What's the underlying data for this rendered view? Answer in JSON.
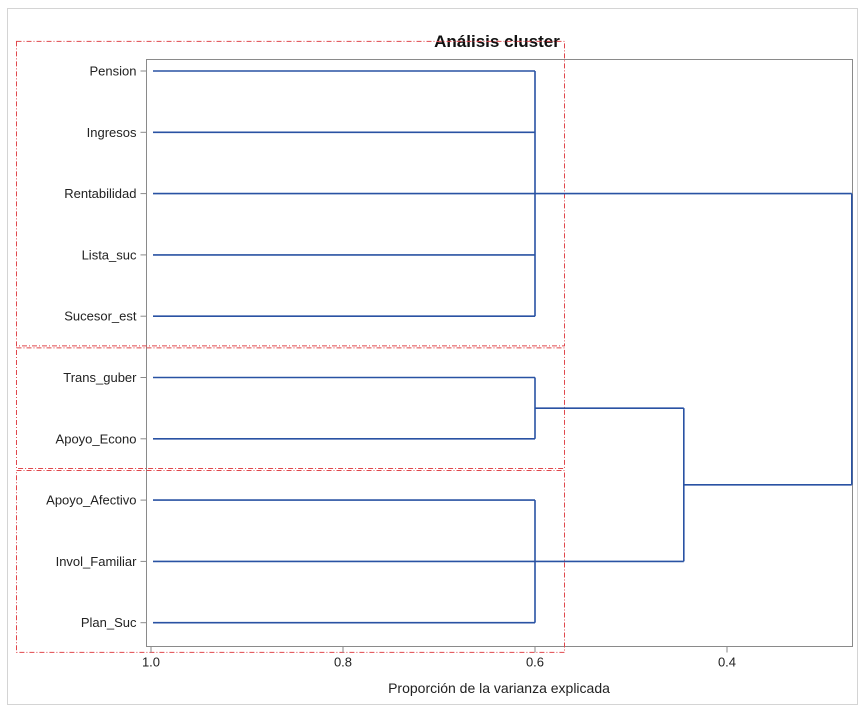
{
  "chart_data": {
    "type": "dendrogram",
    "title": "Análisis cluster",
    "xlabel": "Proporción de la varianza explicada",
    "xlim": [
      1.0,
      0.263
    ],
    "x_ticks": [
      "1.0",
      "0.8",
      "0.6",
      "0.4"
    ],
    "x_tick_values": [
      1.0,
      0.8,
      0.6,
      0.4
    ],
    "leaves": [
      "Pension",
      "Ingresos",
      "Rentabilidad",
      "Lista_suc",
      "Sucesor_est",
      "Trans_guber",
      "Apoyo_Econo",
      "Apoyo_Afectivo",
      "Invol_Familiar",
      "Plan_Suc"
    ],
    "merges": [
      {
        "members": [
          "Pension",
          "Ingresos",
          "Rentabilidad",
          "Lista_suc",
          "Sucesor_est"
        ],
        "height": 0.6
      },
      {
        "members": [
          "Trans_guber",
          "Apoyo_Econo"
        ],
        "height": 0.6
      },
      {
        "members": [
          "Apoyo_Afectivo",
          "Invol_Familiar",
          "Plan_Suc"
        ],
        "height": 0.6
      },
      {
        "members": [
          "cluster_2",
          "cluster_3"
        ],
        "height": 0.445
      },
      {
        "members": [
          "cluster_1",
          "cluster_4"
        ],
        "height": 0.27
      }
    ],
    "highlight_groups": [
      [
        "Pension",
        "Ingresos",
        "Rentabilidad",
        "Lista_suc",
        "Sucesor_est"
      ],
      [
        "Trans_guber",
        "Apoyo_Econo"
      ],
      [
        "Apoyo_Afectivo",
        "Invol_Familiar",
        "Plan_Suc"
      ]
    ],
    "grid": false,
    "legend": "none",
    "colors": {
      "branch": "#2952a3",
      "highlight_box": "#e0474c",
      "axis": "#8a8a8a"
    }
  }
}
